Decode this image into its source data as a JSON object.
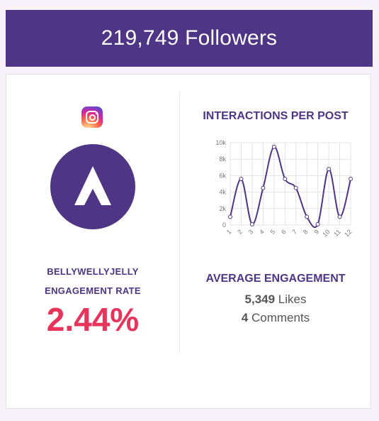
{
  "header": {
    "followers_text": "219,749 Followers"
  },
  "profile": {
    "platform_icon": "instagram-icon",
    "avatar_icon": "arrow-up-logo-icon",
    "account_name": "BELLYWELLYJELLY",
    "engagement_label": "ENGAGEMENT RATE",
    "engagement_rate": "2.44%"
  },
  "chart_data": {
    "type": "line",
    "title": "INTERACTIONS PER POST",
    "categories": [
      "1",
      "2",
      "3",
      "4",
      "5",
      "6",
      "7",
      "8",
      "9",
      "10",
      "11",
      "12"
    ],
    "values": [
      1000,
      5600,
      100,
      4500,
      9500,
      5600,
      4500,
      1000,
      100,
      6800,
      1000,
      5600
    ],
    "yticks": [
      "0",
      "2k",
      "4k",
      "6k",
      "8k",
      "10k"
    ],
    "ylim": [
      0,
      10000
    ],
    "grid": true,
    "line_color": "#4f3585"
  },
  "engagement": {
    "title": "AVERAGE ENGAGEMENT",
    "likes_value": "5,349",
    "likes_label": "Likes",
    "comments_value": "4",
    "comments_label": "Comments"
  },
  "colors": {
    "brand": "#4f3585",
    "rate": "#e8345a"
  }
}
